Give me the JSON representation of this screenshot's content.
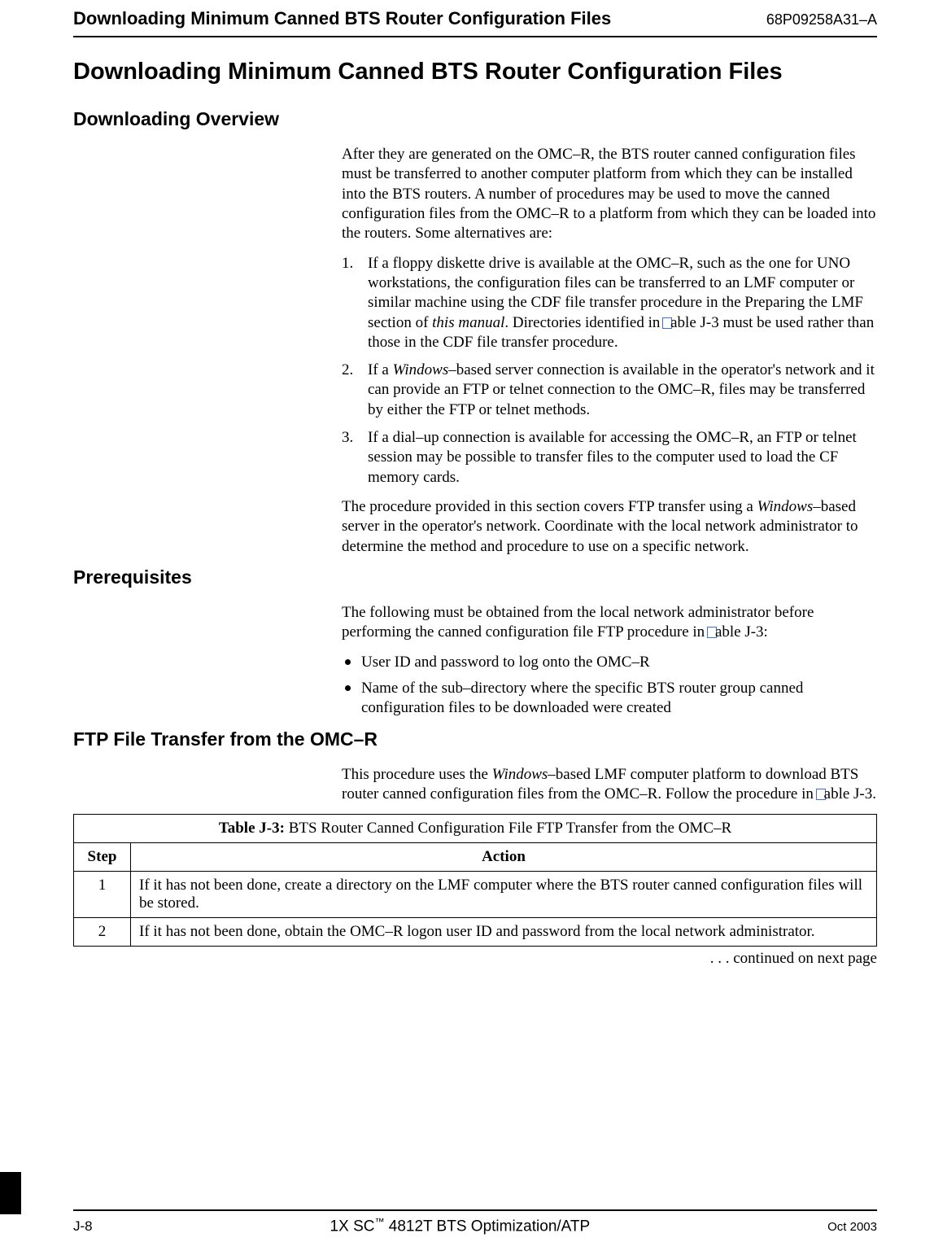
{
  "header": {
    "left": "Downloading Minimum Canned BTS Router Configuration Files",
    "right": "68P09258A31–A"
  },
  "h1": "Downloading Minimum Canned BTS Router Configuration Files",
  "sections": {
    "overview": {
      "heading": "Downloading Overview",
      "intro": "After they are generated on the OMC–R, the BTS router canned configuration files must be transferred to another computer platform from which they can be installed into the BTS routers. A number of procedures may be used to move the canned configuration files from the OMC–R to a platform from which they can be loaded into the routers. Some alternatives are:",
      "items": [
        {
          "num": "1.",
          "pre": "If a floppy diskette drive is available at the OMC–R, such as the one for UNO workstations, the configuration files can be transferred to an LMF computer or similar machine using the CDF file transfer procedure in the Preparing the LMF section of ",
          "ital": "this manual",
          "post1": ". Directories identified in",
          "link_text": "T",
          "post2": "able J-3 must be used rather than those in the CDF file transfer procedure."
        },
        {
          "num": "2.",
          "pre": "If a ",
          "ital": "Windows",
          "post1": "–based server connection is available in the operator's network and it can provide an FTP or telnet connection to the OMC–R, files may be transferred by either the FTP or telnet methods.",
          "link_text": "",
          "post2": ""
        },
        {
          "num": "3.",
          "pre": "If a dial–up connection is available for accessing the OMC–R, an FTP or telnet session may be possible to transfer files to the computer used to load the CF memory cards.",
          "ital": "",
          "post1": "",
          "link_text": "",
          "post2": ""
        }
      ],
      "closing_pre": "The procedure provided in this section covers FTP transfer using a ",
      "closing_ital": "Windows",
      "closing_post": "–based server in the operator's network. Coordinate with the local network administrator to determine the method and procedure to use on a specific network."
    },
    "prereq": {
      "heading": "Prerequisites",
      "intro_pre": "The following must be obtained from the local network administrator before performing the canned configuration file FTP procedure in ",
      "intro_link": "T",
      "intro_post": "able J-3:",
      "bullets": [
        "User ID and password to log onto the OMC–R",
        "Name of the sub–directory where the specific BTS router group canned configuration files to be downloaded were created"
      ]
    },
    "ftp": {
      "heading": "FTP File Transfer from the OMC–R",
      "para_pre": "This procedure uses the ",
      "para_ital": "Windows",
      "para_mid": "–based LMF computer platform to download BTS router canned configuration files from the OMC–R. Follow the procedure in",
      "para_link": "T",
      "para_post": "able J-3."
    }
  },
  "table": {
    "title_bold": "Table J-3:",
    "title_rest": " BTS Router Canned Configuration File FTP Transfer from the OMC–R",
    "col_step": "Step",
    "col_action": "Action",
    "rows": [
      {
        "step": "1",
        "action": "If it has not been done, create a directory on the LMF computer where the BTS router canned configuration files will be stored."
      },
      {
        "step": "2",
        "action": "If it has not been done, obtain the OMC–R logon user ID and password from the local network administrator."
      }
    ],
    "continued": ". . . continued on next page"
  },
  "footer": {
    "left": "J-8",
    "center_pre": "1X SC",
    "center_tm": "™",
    "center_post": " 4812T BTS Optimization/ATP",
    "right": "Oct 2003"
  },
  "tab_letter": "J"
}
